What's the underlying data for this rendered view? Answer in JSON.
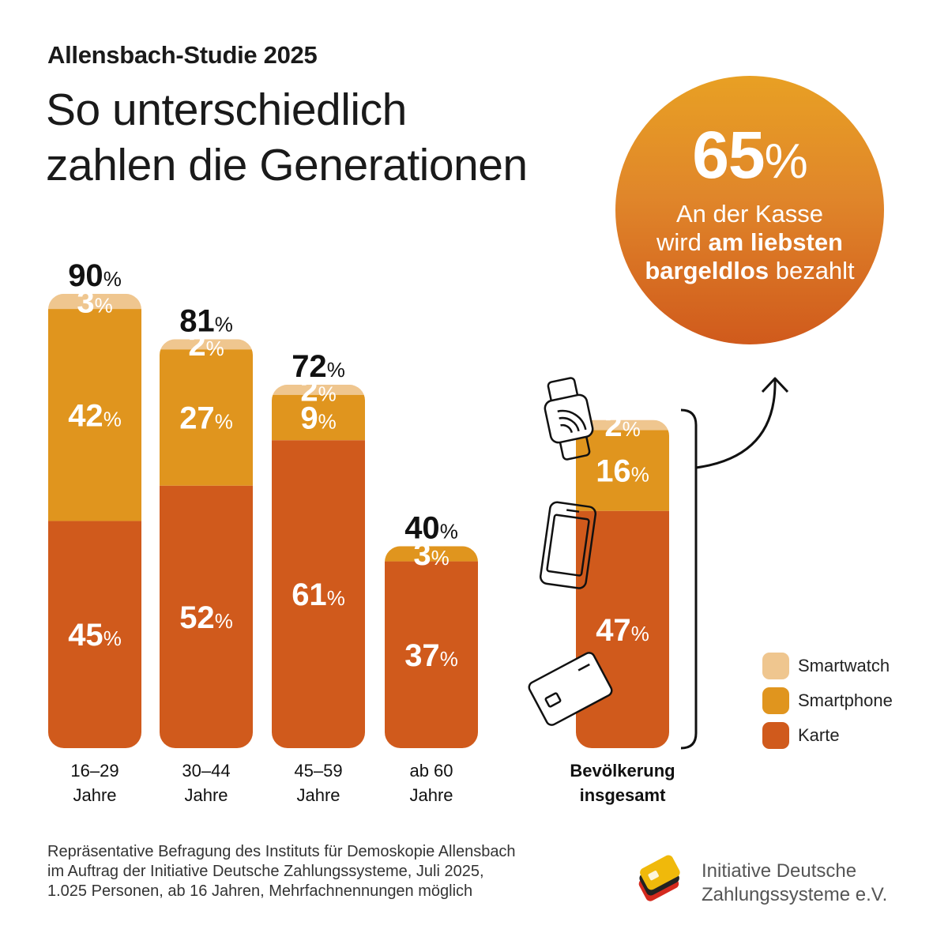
{
  "header": {
    "kicker": "Allensbach-Studie 2025",
    "title_line1": "So unterschiedlich",
    "title_line2": "zahlen die Generationen"
  },
  "highlight": {
    "value": "65",
    "unit": "%",
    "line1": "An der Kasse",
    "line2_pre": "wird ",
    "line2_bold": "am liebsten",
    "line3_bold": "bargeldlos",
    "line3_post": " bezahlt"
  },
  "chart_data": {
    "type": "bar",
    "stacked": true,
    "unit": "%",
    "categories": [
      [
        "16–29",
        "Jahre"
      ],
      [
        "30–44",
        "Jahre"
      ],
      [
        "45–59",
        "Jahre"
      ],
      [
        "ab 60",
        "Jahre"
      ],
      [
        "Bevölkerung",
        "insgesamt"
      ]
    ],
    "series": [
      {
        "name": "Karte",
        "color": "#d05a1c",
        "values": [
          45,
          52,
          61,
          37,
          47
        ]
      },
      {
        "name": "Smartphone",
        "color": "#e0951e",
        "values": [
          42,
          27,
          9,
          3,
          16
        ]
      },
      {
        "name": "Smartwatch",
        "color": "#efc68f",
        "values": [
          3,
          2,
          2,
          0,
          2
        ]
      }
    ],
    "totals": [
      90,
      81,
      72,
      40,
      null
    ],
    "grid": false,
    "legend_position": "bottom-right",
    "icons": [
      "smartwatch-icon",
      "smartphone-icon",
      "card-icon"
    ]
  },
  "legend": [
    {
      "label": "Smartwatch",
      "color": "#efc68f"
    },
    {
      "label": "Smartphone",
      "color": "#e0951e"
    },
    {
      "label": "Karte",
      "color": "#d05a1c"
    }
  ],
  "footer": {
    "source_line1": "Repräsentative Befragung des Instituts für Demoskopie Allensbach",
    "source_line2": "im Auftrag der Initiative Deutsche Zahlungssysteme, Juli 2025,",
    "source_line3": "1.025 Personen, ab 16 Jahren, Mehrfachnennungen möglich",
    "org_line1": "Initiative Deutsche",
    "org_line2": "Zahlungssysteme e.V."
  }
}
